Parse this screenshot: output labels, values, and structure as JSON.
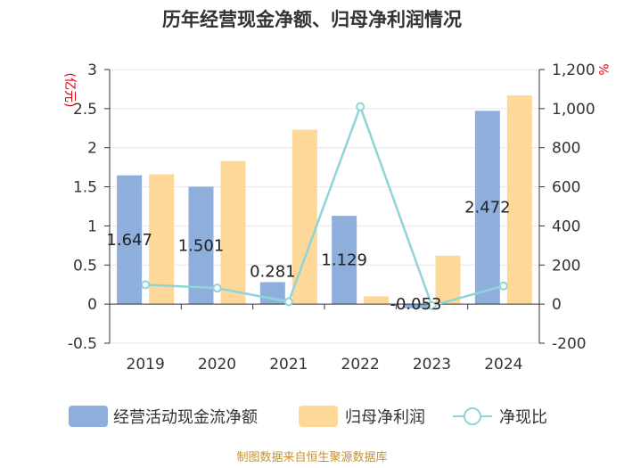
{
  "chart_data": {
    "type": "bar+line",
    "title": "历年经营现金净额、归母净利润情况",
    "categories": [
      "2019",
      "2020",
      "2021",
      "2022",
      "2023",
      "2024"
    ],
    "series": [
      {
        "name": "经营活动现金流净额",
        "type": "bar",
        "axis": "left",
        "color": "#8eaedc",
        "values": [
          1.647,
          1.501,
          0.281,
          1.129,
          -0.053,
          2.472
        ]
      },
      {
        "name": "归母净利润",
        "type": "bar",
        "axis": "left",
        "color": "#fdd898",
        "values": [
          1.66,
          1.83,
          2.23,
          0.1,
          0.62,
          2.67
        ]
      },
      {
        "name": "净现比",
        "type": "line",
        "axis": "right",
        "color": "#8fd5d8",
        "values": [
          99,
          82,
          12,
          1010,
          -8,
          93
        ]
      }
    ],
    "data_labels": [
      "1.647",
      "1.501",
      "0.281",
      "1.129",
      "-0.053",
      "2.472"
    ],
    "left_axis": {
      "unit": "(亿元)",
      "min": -0.5,
      "max": 3,
      "ticks": [
        "3",
        "2.5",
        "2",
        "1.5",
        "1",
        "0.5",
        "0",
        "-0.5"
      ]
    },
    "right_axis": {
      "unit": "%",
      "min": -200,
      "max": 1200,
      "ticks": [
        "1,200",
        "1,000",
        "800",
        "600",
        "400",
        "200",
        "0",
        "-200"
      ]
    },
    "legend": {
      "position": "bottom",
      "items": [
        "经营活动现金流净额",
        "归母净利润",
        "净现比"
      ]
    }
  },
  "source": "制图数据来自恒生聚源数据库"
}
